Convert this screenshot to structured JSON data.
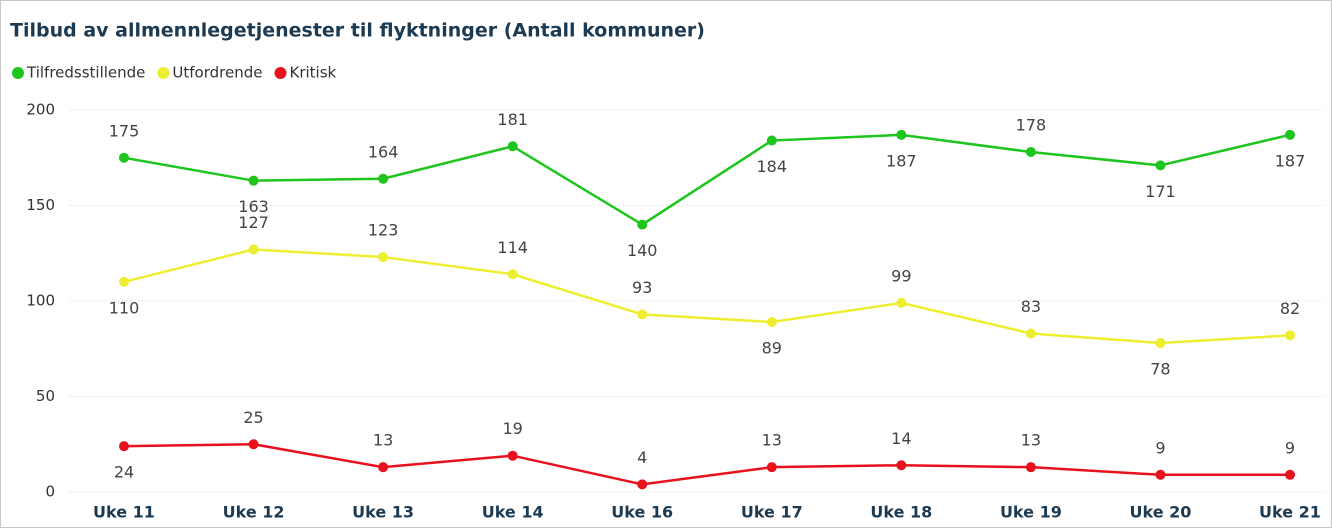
{
  "chart_data": {
    "type": "line",
    "title": "Tilbud av allmennlegetjenester til flyktninger (Antall kommuner)",
    "categories": [
      "Uke 11",
      "Uke 12",
      "Uke 13",
      "Uke 14",
      "Uke 16",
      "Uke 17",
      "Uke 18",
      "Uke 19",
      "Uke 20",
      "Uke 21"
    ],
    "series": [
      {
        "name": "Tilfredsstillende",
        "color": "#1ec51e",
        "values": [
          175,
          163,
          164,
          181,
          140,
          184,
          187,
          178,
          171,
          187
        ]
      },
      {
        "name": "Utfordrende",
        "color": "#eeee30",
        "values": [
          110,
          127,
          123,
          114,
          93,
          89,
          99,
          83,
          78,
          82
        ]
      },
      {
        "name": "Kritisk",
        "color": "#e8121e",
        "values": [
          24,
          25,
          13,
          19,
          4,
          13,
          14,
          13,
          9,
          9
        ]
      }
    ],
    "ylim": [
      0,
      200
    ],
    "yticks": [
      0,
      50,
      100,
      150,
      200
    ],
    "grid": true,
    "legend": "top-left"
  }
}
